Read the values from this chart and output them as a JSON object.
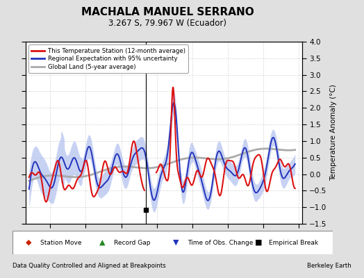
{
  "title": "MACHALA MANUEL SERRANO",
  "subtitle": "3.267 S, 79.967 W (Ecuador)",
  "ylabel": "Temperature Anomaly (°C)",
  "xlim": [
    1976.5,
    2015.5
  ],
  "ylim": [
    -1.5,
    4.0
  ],
  "yticks": [
    -1.5,
    -1.0,
    -0.5,
    0.0,
    0.5,
    1.0,
    1.5,
    2.0,
    2.5,
    3.0,
    3.5,
    4.0
  ],
  "xticks": [
    1980,
    1985,
    1990,
    1995,
    2000,
    2005,
    2010,
    2015
  ],
  "background_color": "#e0e0e0",
  "plot_bg_color": "#ffffff",
  "grid_color": "#c8c8c8",
  "empirical_break_x": 1993.5,
  "empirical_break_y": -1.08,
  "vertical_line_x": 1993.5,
  "footer_left": "Data Quality Controlled and Aligned at Breakpoints",
  "footer_right": "Berkeley Earth",
  "red_color": "#dd1111",
  "blue_color": "#2233bb",
  "band_color": "#aabbee",
  "gray_color": "#aaaaaa"
}
